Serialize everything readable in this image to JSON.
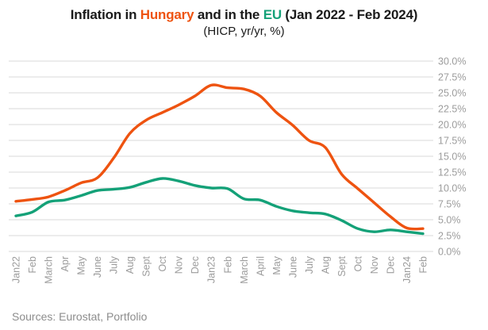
{
  "title": {
    "part1": "Inflation in ",
    "hungary_word": "Hungary",
    "part2": " and in the ",
    "eu_word": "EU",
    "part3": " (Jan 2022 - Feb 2024)"
  },
  "subtitle": "(HICP, yr/yr, %)",
  "source": "Sources: Eurostat, Portfolio",
  "colors": {
    "hungary_line": "#ee5310",
    "eu_line": "#14a178",
    "grid": "#d9d9d9",
    "axis_label": "#9c9c9c",
    "source_text": "#8d8d8d",
    "title_text": "#1a1a1a"
  },
  "chart_data": {
    "type": "line",
    "title": "Inflation in Hungary and in the EU (Jan 2022 - Feb 2024)",
    "subtitle": "(HICP, yr/yr, %)",
    "categories": [
      "Jan22",
      "Feb",
      "March",
      "Apr",
      "May",
      "June",
      "July",
      "Aug",
      "Sept",
      "Oct",
      "Nov",
      "Dec",
      "Jan23",
      "Feb",
      "March",
      "April",
      "May",
      "June",
      "July",
      "Aug",
      "Sept",
      "Oct",
      "Nov",
      "Dec",
      "Jan24",
      "Feb"
    ],
    "series": [
      {
        "name": "Hungary",
        "color": "#ee5310",
        "values": [
          7.9,
          8.2,
          8.6,
          9.6,
          10.8,
          11.6,
          14.7,
          18.6,
          20.7,
          21.9,
          23.1,
          24.5,
          26.2,
          25.8,
          25.6,
          24.5,
          21.9,
          19.9,
          17.5,
          16.4,
          12.2,
          9.9,
          7.7,
          5.5,
          3.7,
          3.6
        ]
      },
      {
        "name": "EU",
        "color": "#14a178",
        "values": [
          5.6,
          6.2,
          7.8,
          8.1,
          8.8,
          9.6,
          9.8,
          10.1,
          10.9,
          11.5,
          11.1,
          10.4,
          10.0,
          9.9,
          8.3,
          8.1,
          7.1,
          6.4,
          6.1,
          5.9,
          4.9,
          3.6,
          3.1,
          3.4,
          3.1,
          2.8
        ]
      }
    ],
    "ylim": [
      0,
      30
    ],
    "y_ticks": [
      {
        "value": 0,
        "label": "0.0%"
      },
      {
        "value": 2.5,
        "label": "2.5%"
      },
      {
        "value": 5,
        "label": "5.0%"
      },
      {
        "value": 7.5,
        "label": "7.5%"
      },
      {
        "value": 10,
        "label": "10.0%"
      },
      {
        "value": 12.5,
        "label": "12.5%"
      },
      {
        "value": 15,
        "label": "15.0%"
      },
      {
        "value": 17.5,
        "label": "17.5%"
      },
      {
        "value": 20,
        "label": "20.0%"
      },
      {
        "value": 22.5,
        "label": "22.5%"
      },
      {
        "value": 25,
        "label": "25.0%"
      },
      {
        "value": 27.5,
        "label": "27.5%"
      },
      {
        "value": 30,
        "label": "30.0%"
      }
    ],
    "y_axis_side": "right",
    "x_label_rotation": -90,
    "grid": true,
    "legend": "none"
  }
}
